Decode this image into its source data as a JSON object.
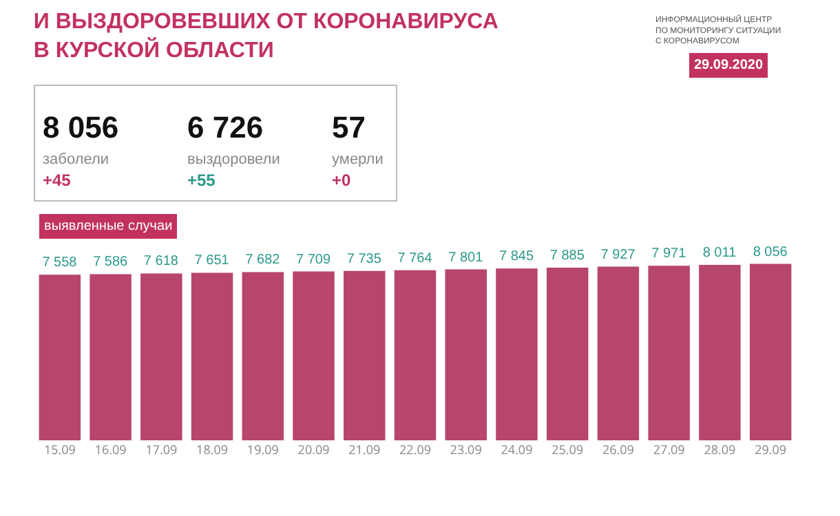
{
  "chart_data": {
    "type": "bar",
    "title": "И ВЫЗДОРОВЕВШИХ ОТ КОРОНАВИРУСА\nВ КУРСКОЙ ОБЛАСТИ",
    "categories": [
      "15.09",
      "16.09",
      "17.09",
      "18.09",
      "19.09",
      "20.09",
      "21.09",
      "22.09",
      "23.09",
      "24.09",
      "25.09",
      "26.09",
      "27.09",
      "28.09",
      "29.09"
    ],
    "values": [
      7558,
      7586,
      7618,
      7651,
      7682,
      7709,
      7735,
      7764,
      7801,
      7845,
      7885,
      7927,
      7971,
      8011,
      8056
    ],
    "color": "#b8456b",
    "data_labels": true,
    "tick_labels": "x",
    "annotations": [
      "8 056",
      "заболели",
      "+45",
      "6 726",
      "выздоровели",
      "+55",
      "57",
      "умерли",
      "+0",
      "выявленные случаи",
      "29.09.2020",
      "ИНФОРМАЦИОННЫЙ ЦЕНТР\nПО МОНИТОРИНГУ СИТУАЦИИ\nС КОРОНАВИРУСОМ"
    ]
  }
}
